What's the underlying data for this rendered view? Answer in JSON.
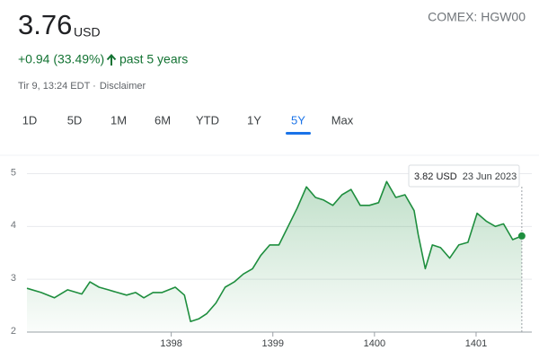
{
  "header": {
    "price": "3.76",
    "currency": "USD",
    "symbol": "COMEX: HGW00",
    "change": "+0.94 (33.49%)",
    "period": "past 5 years",
    "timestamp": "Tir 9, 13:24 EDT ·",
    "disclaimer": "Disclaimer"
  },
  "tabs": {
    "items": [
      "1D",
      "5D",
      "1M",
      "6M",
      "YTD",
      "1Y",
      "5Y",
      "Max"
    ],
    "selected": "5Y"
  },
  "chart_data": {
    "type": "line",
    "x": [
      1396.58,
      1396.72,
      1396.85,
      1396.98,
      1397.12,
      1397.2,
      1397.29,
      1397.38,
      1397.47,
      1397.56,
      1397.65,
      1397.73,
      1397.82,
      1397.91,
      1398.04,
      1398.13,
      1398.19,
      1398.27,
      1398.35,
      1398.44,
      1398.53,
      1398.62,
      1398.71,
      1398.8,
      1398.88,
      1398.97,
      1399.06,
      1399.15,
      1399.24,
      1399.33,
      1399.42,
      1399.5,
      1399.59,
      1399.68,
      1399.77,
      1399.86,
      1399.95,
      1400.04,
      1400.12,
      1400.21,
      1400.3,
      1400.39,
      1400.43,
      1400.5,
      1400.57,
      1400.65,
      1400.74,
      1400.83,
      1400.92,
      1401.01,
      1401.1,
      1401.19,
      1401.27,
      1401.36,
      1401.45
    ],
    "series": [
      {
        "color": "#1e8e3e",
        "values": [
          2.83,
          2.75,
          2.65,
          2.8,
          2.72,
          2.95,
          2.85,
          2.8,
          2.75,
          2.7,
          2.75,
          2.65,
          2.75,
          2.75,
          2.85,
          2.7,
          2.2,
          2.25,
          2.35,
          2.55,
          2.85,
          2.95,
          3.1,
          3.2,
          3.45,
          3.65,
          3.65,
          4.0,
          4.35,
          4.75,
          4.55,
          4.5,
          4.4,
          4.6,
          4.7,
          4.4,
          4.4,
          4.45,
          4.85,
          4.55,
          4.6,
          4.3,
          3.85,
          3.2,
          3.65,
          3.6,
          3.4,
          3.65,
          3.7,
          4.25,
          4.1,
          4.0,
          4.05,
          3.75,
          3.82
        ]
      }
    ],
    "xlim": [
      1396.58,
      1401.46
    ],
    "ylim": [
      2,
      5.28
    ],
    "xticks": [
      1398,
      1399,
      1400,
      1401
    ],
    "yticks": [
      2,
      3,
      4,
      5
    ],
    "grid": true,
    "tooltip": {
      "price": "3.82 USD",
      "date": "23 Jun 2023"
    }
  }
}
